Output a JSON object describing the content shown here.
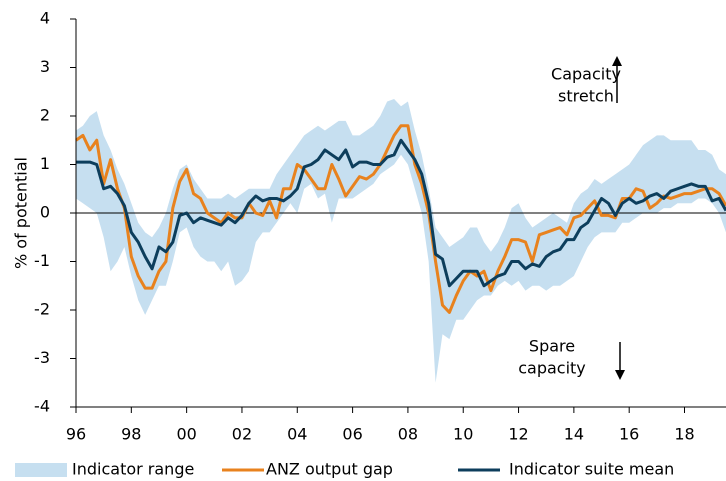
{
  "chart_data": {
    "type": "line",
    "ylabel": "% of potential",
    "annotations": [
      [
        "Capacity",
        "stretch"
      ],
      [
        "Spare",
        "capacity"
      ]
    ],
    "xlim": [
      1996,
      2019.5
    ],
    "xticks": [
      {
        "value": 1996,
        "label": "96"
      },
      {
        "value": 1998,
        "label": "98"
      },
      {
        "value": 2000,
        "label": "00"
      },
      {
        "value": 2002,
        "label": "02"
      },
      {
        "value": 2004,
        "label": "04"
      },
      {
        "value": 2006,
        "label": "06"
      },
      {
        "value": 2008,
        "label": "08"
      },
      {
        "value": 2010,
        "label": "10"
      },
      {
        "value": 2012,
        "label": "12"
      },
      {
        "value": 2014,
        "label": "14"
      },
      {
        "value": 2016,
        "label": "16"
      },
      {
        "value": 2018,
        "label": "18"
      }
    ],
    "ylim": [
      -4,
      4
    ],
    "yticks": [
      -4,
      -3,
      -2,
      -1,
      0,
      1,
      2,
      3,
      4
    ],
    "x": [
      1996,
      1996.25,
      1996.5,
      1996.75,
      1997,
      1997.25,
      1997.5,
      1997.75,
      1998,
      1998.25,
      1998.5,
      1998.75,
      1999,
      1999.25,
      1999.5,
      1999.75,
      2000,
      2000.25,
      2000.5,
      2000.75,
      2001,
      2001.25,
      2001.5,
      2001.75,
      2002,
      2002.25,
      2002.5,
      2002.75,
      2003,
      2003.25,
      2003.5,
      2003.75,
      2004,
      2004.25,
      2004.5,
      2004.75,
      2005,
      2005.25,
      2005.5,
      2005.75,
      2006,
      2006.25,
      2006.5,
      2006.75,
      2007,
      2007.25,
      2007.5,
      2007.75,
      2008,
      2008.25,
      2008.5,
      2008.75,
      2009,
      2009.25,
      2009.5,
      2009.75,
      2010,
      2010.25,
      2010.5,
      2010.75,
      2011,
      2011.25,
      2011.5,
      2011.75,
      2012,
      2012.25,
      2012.5,
      2012.75,
      2013,
      2013.25,
      2013.5,
      2013.75,
      2014,
      2014.25,
      2014.5,
      2014.75,
      2015,
      2015.25,
      2015.5,
      2015.75,
      2016,
      2016.25,
      2016.5,
      2016.75,
      2017,
      2017.25,
      2017.5,
      2017.75,
      2018,
      2018.25,
      2018.5,
      2018.75,
      2019,
      2019.25,
      2019.5
    ],
    "series": [
      {
        "name": "Indicator range",
        "color": "#c6dff0",
        "low": [
          0.3,
          0.2,
          0.1,
          0.0,
          -0.5,
          -1.2,
          -1.0,
          -0.7,
          -1.3,
          -1.8,
          -2.1,
          -1.8,
          -1.5,
          -1.5,
          -1.0,
          -0.4,
          -0.3,
          -0.7,
          -0.9,
          -1.0,
          -1.0,
          -1.2,
          -1.0,
          -1.5,
          -1.4,
          -1.2,
          -0.6,
          -0.4,
          -0.4,
          -0.2,
          0.0,
          0.2,
          0.0,
          0.5,
          0.6,
          0.3,
          0.4,
          -0.2,
          0.3,
          0.3,
          0.3,
          0.4,
          0.5,
          0.6,
          0.8,
          0.9,
          1.0,
          1.2,
          1.0,
          0.5,
          0.0,
          -1.0,
          -3.5,
          -2.5,
          -2.6,
          -2.2,
          -2.2,
          -2.0,
          -1.8,
          -1.7,
          -1.7,
          -1.5,
          -1.4,
          -1.5,
          -1.4,
          -1.6,
          -1.5,
          -1.5,
          -1.6,
          -1.5,
          -1.5,
          -1.4,
          -1.3,
          -1.0,
          -0.7,
          -0.5,
          -0.4,
          -0.4,
          -0.4,
          -0.2,
          -0.2,
          -0.1,
          0.0,
          0.0,
          0.0,
          0.1,
          0.1,
          0.2,
          0.2,
          0.2,
          0.3,
          0.3,
          0.2,
          0.0,
          -0.4
        ],
        "high": [
          1.7,
          1.8,
          2.0,
          2.1,
          1.6,
          1.3,
          0.9,
          0.6,
          0.2,
          -0.2,
          -0.4,
          -0.5,
          -0.3,
          0.0,
          0.5,
          0.9,
          1.0,
          0.7,
          0.5,
          0.3,
          0.3,
          0.3,
          0.4,
          0.3,
          0.4,
          0.5,
          0.5,
          0.5,
          0.5,
          0.8,
          1.0,
          1.2,
          1.4,
          1.6,
          1.7,
          1.8,
          1.7,
          1.8,
          1.9,
          1.9,
          1.6,
          1.6,
          1.7,
          1.8,
          2.0,
          2.3,
          2.35,
          2.2,
          2.3,
          1.7,
          1.2,
          0.5,
          -0.3,
          -0.5,
          -0.7,
          -0.6,
          -0.5,
          -0.3,
          -0.3,
          -0.6,
          -0.8,
          -0.6,
          -0.3,
          0.1,
          0.2,
          -0.1,
          -0.3,
          -0.2,
          -0.1,
          0.0,
          -0.1,
          -0.2,
          0.2,
          0.4,
          0.5,
          0.7,
          0.6,
          0.7,
          0.8,
          0.9,
          1.0,
          1.2,
          1.4,
          1.5,
          1.6,
          1.6,
          1.5,
          1.5,
          1.5,
          1.5,
          1.3,
          1.3,
          1.2,
          0.9,
          0.8
        ]
      },
      {
        "name": "ANZ output gap",
        "color": "#e8821e",
        "values": [
          1.5,
          1.6,
          1.3,
          1.5,
          0.6,
          1.1,
          0.5,
          0.1,
          -0.9,
          -1.3,
          -1.55,
          -1.55,
          -1.2,
          -1.0,
          0.1,
          0.65,
          0.9,
          0.4,
          0.3,
          0.0,
          -0.1,
          -0.2,
          0.0,
          -0.1,
          -0.1,
          0.2,
          0.0,
          -0.05,
          0.25,
          -0.1,
          0.5,
          0.5,
          1.0,
          0.9,
          0.7,
          0.5,
          0.5,
          1.0,
          0.7,
          0.35,
          0.55,
          0.75,
          0.7,
          0.8,
          1.0,
          1.3,
          1.6,
          1.8,
          1.8,
          1.0,
          0.6,
          0.0,
          -1.0,
          -1.9,
          -2.05,
          -1.7,
          -1.4,
          -1.2,
          -1.3,
          -1.2,
          -1.6,
          -1.2,
          -0.9,
          -0.55,
          -0.55,
          -0.6,
          -1.0,
          -0.45,
          -0.4,
          -0.35,
          -0.3,
          -0.45,
          -0.1,
          -0.05,
          0.1,
          0.25,
          -0.05,
          -0.05,
          -0.1,
          0.3,
          0.3,
          0.5,
          0.45,
          0.1,
          0.2,
          0.35,
          0.3,
          0.35,
          0.4,
          0.4,
          0.45,
          0.5,
          0.5,
          0.4,
          0.15
        ]
      },
      {
        "name": "Indicator suite mean",
        "color": "#0d3e5c",
        "values": [
          1.05,
          1.05,
          1.05,
          1.0,
          0.5,
          0.55,
          0.4,
          0.15,
          -0.4,
          -0.6,
          -0.9,
          -1.15,
          -0.7,
          -0.8,
          -0.6,
          -0.05,
          0.0,
          -0.2,
          -0.1,
          -0.15,
          -0.2,
          -0.25,
          -0.1,
          -0.2,
          -0.05,
          0.2,
          0.35,
          0.25,
          0.3,
          0.3,
          0.25,
          0.35,
          0.5,
          0.95,
          1.0,
          1.1,
          1.3,
          1.2,
          1.1,
          1.3,
          0.95,
          1.05,
          1.05,
          1.0,
          1.0,
          1.15,
          1.2,
          1.5,
          1.3,
          1.1,
          0.8,
          0.2,
          -0.85,
          -0.95,
          -1.5,
          -1.35,
          -1.2,
          -1.2,
          -1.2,
          -1.5,
          -1.4,
          -1.3,
          -1.25,
          -1.0,
          -1.0,
          -1.15,
          -1.05,
          -1.1,
          -0.9,
          -0.8,
          -0.75,
          -0.55,
          -0.55,
          -0.3,
          -0.2,
          0.05,
          0.3,
          0.2,
          -0.05,
          0.2,
          0.3,
          0.2,
          0.25,
          0.35,
          0.4,
          0.3,
          0.45,
          0.5,
          0.55,
          0.6,
          0.55,
          0.55,
          0.25,
          0.3,
          0.05
        ]
      }
    ]
  }
}
